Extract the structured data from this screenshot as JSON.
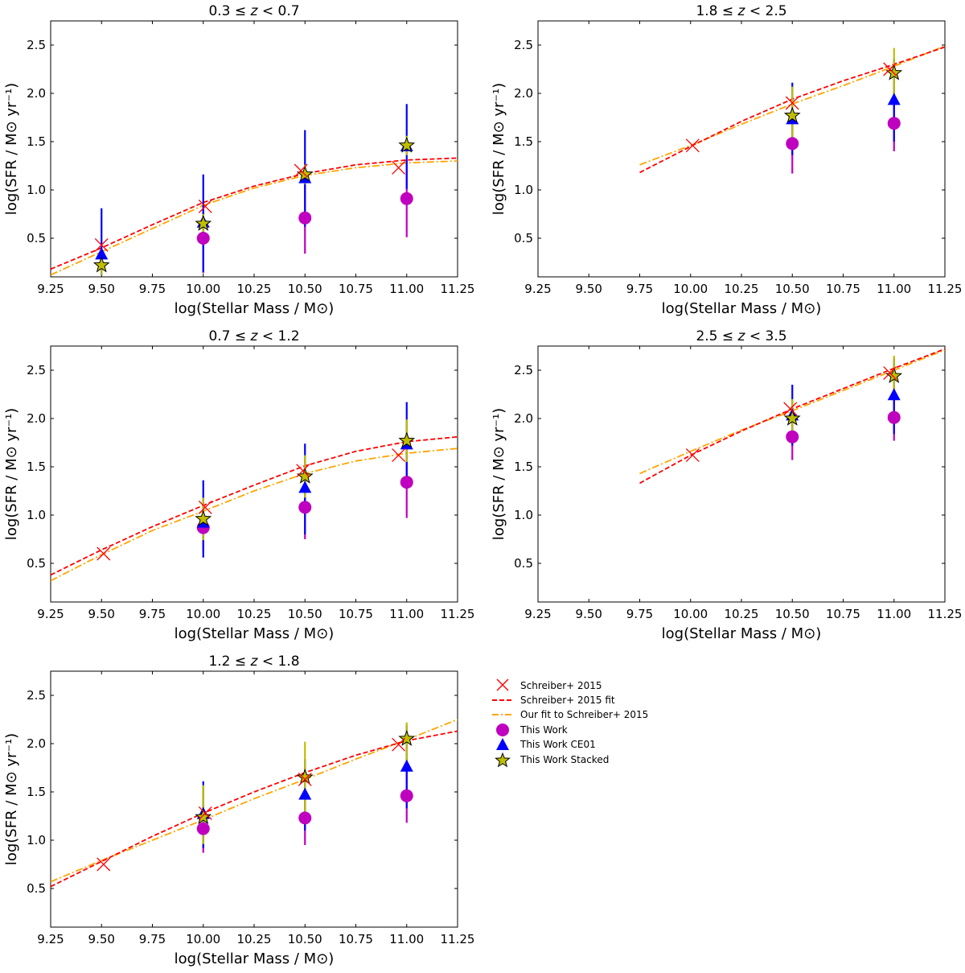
{
  "chart_data": [
    {
      "type": "scatter",
      "title": "0.3 ≤ z < 0.7",
      "title_parts": {
        "lo": "0.3",
        "var": "z",
        "hi": "0.7"
      },
      "xlabel": "log(Stellar Mass / M⊙)",
      "ylabel": "log(SFR / M⊙ yr⁻¹)",
      "xlim": [
        9.25,
        11.25
      ],
      "ylim": [
        0.1,
        2.75
      ],
      "xticks": [
        "9.25",
        "9.50",
        "9.75",
        "10.00",
        "10.25",
        "10.50",
        "10.75",
        "11.00",
        "11.25"
      ],
      "yticks": [
        "0.5",
        "1.0",
        "1.5",
        "2.0",
        "2.5"
      ],
      "schreiber_points": [
        [
          9.5,
          0.43
        ],
        [
          10.01,
          0.83
        ],
        [
          10.48,
          1.2
        ],
        [
          10.96,
          1.23
        ]
      ],
      "schreiber_fit": {
        "x": [
          9.25,
          9.5,
          9.75,
          10.0,
          10.25,
          10.5,
          10.75,
          11.0,
          11.25
        ],
        "y": [
          0.18,
          0.4,
          0.64,
          0.87,
          1.04,
          1.17,
          1.26,
          1.31,
          1.33
        ]
      },
      "our_fit": {
        "x": [
          9.25,
          9.5,
          9.75,
          10.0,
          10.25,
          10.5,
          10.75,
          11.0,
          11.25
        ],
        "y": [
          0.12,
          0.36,
          0.6,
          0.84,
          1.02,
          1.15,
          1.23,
          1.28,
          1.3
        ]
      },
      "this_work": [
        {
          "x": 10.0,
          "y": 0.5,
          "ylo": 0.14,
          "yhi": 0.86
        },
        {
          "x": 10.5,
          "y": 0.71,
          "ylo": 0.34,
          "yhi": 1.08
        },
        {
          "x": 11.0,
          "y": 0.91,
          "ylo": 0.51,
          "yhi": 1.31
        }
      ],
      "ce01": [
        {
          "x": 9.5,
          "y": 0.33,
          "ylo": 0.12,
          "yhi": 0.81
        },
        {
          "x": 10.0,
          "y": 0.66,
          "ylo": 0.15,
          "yhi": 1.16
        },
        {
          "x": 10.5,
          "y": 1.12,
          "ylo": 0.62,
          "yhi": 1.62
        },
        {
          "x": 11.0,
          "y": 1.45,
          "ylo": 1.01,
          "yhi": 1.89
        }
      ],
      "stacked": [
        {
          "x": 9.5,
          "y": 0.22,
          "ylo": 0.12,
          "yhi": 0.32
        },
        {
          "x": 10.0,
          "y": 0.65,
          "ylo": 0.55,
          "yhi": 0.75
        },
        {
          "x": 10.5,
          "y": 1.16,
          "ylo": 1.06,
          "yhi": 1.26
        },
        {
          "x": 11.0,
          "y": 1.46,
          "ylo": 1.36,
          "yhi": 1.56
        }
      ]
    },
    {
      "type": "scatter",
      "title": "1.8 ≤ z < 2.5",
      "title_parts": {
        "lo": "1.8",
        "var": "z",
        "hi": "2.5"
      },
      "xlabel": "log(Stellar Mass / M⊙)",
      "ylabel": "log(SFR / M⊙ yr⁻¹)",
      "xlim": [
        9.25,
        11.25
      ],
      "ylim": [
        0.1,
        2.75
      ],
      "xticks": [
        "9.25",
        "9.50",
        "9.75",
        "10.00",
        "10.25",
        "10.50",
        "10.75",
        "11.00",
        "11.25"
      ],
      "yticks": [
        "0.5",
        "1.0",
        "1.5",
        "2.0",
        "2.5"
      ],
      "schreiber_points": [
        [
          10.01,
          1.46
        ],
        [
          10.5,
          1.9
        ],
        [
          10.98,
          2.25
        ]
      ],
      "schreiber_fit": {
        "x": [
          9.75,
          10.0,
          10.25,
          10.5,
          10.75,
          11.0,
          11.25
        ],
        "y": [
          1.18,
          1.45,
          1.71,
          1.94,
          2.13,
          2.3,
          2.48
        ]
      },
      "our_fit": {
        "x": [
          9.75,
          10.0,
          10.25,
          10.5,
          10.75,
          11.0,
          11.25
        ],
        "y": [
          1.26,
          1.46,
          1.68,
          1.89,
          2.08,
          2.28,
          2.49
        ]
      },
      "this_work": [
        {
          "x": 10.5,
          "y": 1.48,
          "ylo": 1.17,
          "yhi": 1.79
        },
        {
          "x": 11.0,
          "y": 1.69,
          "ylo": 1.4,
          "yhi": 1.98
        }
      ],
      "ce01": [
        {
          "x": 10.5,
          "y": 1.73,
          "ylo": 1.36,
          "yhi": 2.11
        },
        {
          "x": 11.0,
          "y": 1.93,
          "ylo": 1.5,
          "yhi": 2.36
        }
      ],
      "stacked": [
        {
          "x": 10.5,
          "y": 1.77,
          "ylo": 1.47,
          "yhi": 2.07
        },
        {
          "x": 11.0,
          "y": 2.21,
          "ylo": 1.95,
          "yhi": 2.47
        }
      ]
    },
    {
      "type": "scatter",
      "title": "0.7 ≤ z < 1.2",
      "title_parts": {
        "lo": "0.7",
        "var": "z",
        "hi": "1.2"
      },
      "xlabel": "log(Stellar Mass / M⊙)",
      "ylabel": "log(SFR / M⊙ yr⁻¹)",
      "xlim": [
        9.25,
        11.25
      ],
      "ylim": [
        0.1,
        2.75
      ],
      "xticks": [
        "9.25",
        "9.50",
        "9.75",
        "10.00",
        "10.25",
        "10.50",
        "10.75",
        "11.00",
        "11.25"
      ],
      "yticks": [
        "0.5",
        "1.0",
        "1.5",
        "2.0",
        "2.5"
      ],
      "schreiber_points": [
        [
          9.51,
          0.6
        ],
        [
          10.01,
          1.08
        ],
        [
          10.49,
          1.46
        ],
        [
          10.96,
          1.62
        ]
      ],
      "schreiber_fit": {
        "x": [
          9.25,
          9.5,
          9.75,
          10.0,
          10.25,
          10.5,
          10.75,
          11.0,
          11.25
        ],
        "y": [
          0.38,
          0.64,
          0.88,
          1.1,
          1.31,
          1.51,
          1.66,
          1.76,
          1.81
        ]
      },
      "our_fit": {
        "x": [
          9.25,
          9.5,
          9.75,
          10.0,
          10.25,
          10.5,
          10.75,
          11.0,
          11.25
        ],
        "y": [
          0.32,
          0.59,
          0.84,
          1.04,
          1.25,
          1.43,
          1.56,
          1.64,
          1.69
        ]
      },
      "this_work": [
        {
          "x": 10.0,
          "y": 0.87,
          "ylo": 0.63,
          "yhi": 1.12
        },
        {
          "x": 10.5,
          "y": 1.08,
          "ylo": 0.75,
          "yhi": 1.4
        },
        {
          "x": 11.0,
          "y": 1.34,
          "ylo": 0.97,
          "yhi": 1.69
        }
      ],
      "ce01": [
        {
          "x": 10.0,
          "y": 0.92,
          "ylo": 0.56,
          "yhi": 1.36
        },
        {
          "x": 10.5,
          "y": 1.28,
          "ylo": 0.8,
          "yhi": 1.74
        },
        {
          "x": 11.0,
          "y": 1.73,
          "ylo": 1.28,
          "yhi": 2.17
        }
      ],
      "stacked": [
        {
          "x": 10.0,
          "y": 0.96,
          "ylo": 0.74,
          "yhi": 1.18
        },
        {
          "x": 10.5,
          "y": 1.4,
          "ylo": 1.18,
          "yhi": 1.62
        },
        {
          "x": 11.0,
          "y": 1.77,
          "ylo": 1.55,
          "yhi": 1.99
        }
      ]
    },
    {
      "type": "scatter",
      "title": "2.5 ≤ z < 3.5",
      "title_parts": {
        "lo": "2.5",
        "var": "z",
        "hi": "3.5"
      },
      "xlabel": "log(Stellar Mass / M⊙)",
      "ylabel": "log(SFR / M⊙ yr⁻¹)",
      "xlim": [
        9.25,
        11.25
      ],
      "ylim": [
        0.1,
        2.75
      ],
      "xticks": [
        "9.25",
        "9.50",
        "9.75",
        "10.00",
        "10.25",
        "10.50",
        "10.75",
        "11.00",
        "11.25"
      ],
      "yticks": [
        "0.5",
        "1.0",
        "1.5",
        "2.0",
        "2.5"
      ],
      "schreiber_points": [
        [
          10.01,
          1.62
        ],
        [
          10.49,
          2.1
        ],
        [
          10.98,
          2.47
        ]
      ],
      "schreiber_fit": {
        "x": [
          9.75,
          10.0,
          10.25,
          10.5,
          10.75,
          11.0,
          11.25
        ],
        "y": [
          1.33,
          1.62,
          1.87,
          2.1,
          2.31,
          2.52,
          2.72
        ]
      },
      "our_fit": {
        "x": [
          9.75,
          10.0,
          10.25,
          10.5,
          10.75,
          11.0,
          11.25
        ],
        "y": [
          1.43,
          1.66,
          1.88,
          2.08,
          2.29,
          2.5,
          2.71
        ]
      },
      "this_work": [
        {
          "x": 10.5,
          "y": 1.81,
          "ylo": 1.57,
          "yhi": 2.05
        },
        {
          "x": 11.0,
          "y": 2.01,
          "ylo": 1.77,
          "yhi": 2.25
        }
      ],
      "ce01": [
        {
          "x": 10.5,
          "y": 2.03,
          "ylo": 1.72,
          "yhi": 2.35
        },
        {
          "x": 11.0,
          "y": 2.24,
          "ylo": 1.84,
          "yhi": 2.62
        }
      ],
      "stacked": [
        {
          "x": 10.5,
          "y": 2.0,
          "ylo": 1.8,
          "yhi": 2.2
        },
        {
          "x": 11.0,
          "y": 2.44,
          "ylo": 2.23,
          "yhi": 2.65
        }
      ]
    },
    {
      "type": "scatter",
      "title": "1.2 ≤ z < 1.8",
      "title_parts": {
        "lo": "1.2",
        "var": "z",
        "hi": "1.8"
      },
      "xlabel": "log(Stellar Mass / M⊙)",
      "ylabel": "log(SFR / M⊙ yr⁻¹)",
      "xlim": [
        9.25,
        11.25
      ],
      "ylim": [
        0.1,
        2.75
      ],
      "xticks": [
        "9.25",
        "9.50",
        "9.75",
        "10.00",
        "10.25",
        "10.50",
        "10.75",
        "11.00",
        "11.25"
      ],
      "yticks": [
        "0.5",
        "1.0",
        "1.5",
        "2.0",
        "2.5"
      ],
      "schreiber_points": [
        [
          9.51,
          0.75
        ],
        [
          10.01,
          1.28
        ],
        [
          10.5,
          1.63
        ],
        [
          10.96,
          1.99
        ]
      ],
      "schreiber_fit": {
        "x": [
          9.25,
          9.5,
          9.75,
          10.0,
          10.25,
          10.5,
          10.75,
          11.0,
          11.25
        ],
        "y": [
          0.52,
          0.78,
          1.04,
          1.28,
          1.5,
          1.7,
          1.88,
          2.03,
          2.13
        ]
      },
      "our_fit": {
        "x": [
          9.25,
          9.5,
          9.75,
          10.0,
          10.25,
          10.5,
          10.75,
          11.0,
          11.25
        ],
        "y": [
          0.57,
          0.79,
          1.0,
          1.21,
          1.43,
          1.63,
          1.84,
          2.04,
          2.25
        ]
      },
      "this_work": [
        {
          "x": 10.0,
          "y": 1.12,
          "ylo": 0.87,
          "yhi": 1.37
        },
        {
          "x": 10.5,
          "y": 1.23,
          "ylo": 0.95,
          "yhi": 1.52
        },
        {
          "x": 11.0,
          "y": 1.46,
          "ylo": 1.18,
          "yhi": 1.74
        }
      ],
      "ce01": [
        {
          "x": 10.0,
          "y": 1.27,
          "ylo": 0.92,
          "yhi": 1.61
        },
        {
          "x": 10.5,
          "y": 1.47,
          "ylo": 1.1,
          "yhi": 1.84
        },
        {
          "x": 11.0,
          "y": 1.76,
          "ylo": 1.33,
          "yhi": 2.19
        }
      ],
      "stacked": [
        {
          "x": 10.0,
          "y": 1.24,
          "ylo": 0.96,
          "yhi": 1.57
        },
        {
          "x": 10.5,
          "y": 1.65,
          "ylo": 1.29,
          "yhi": 2.02
        },
        {
          "x": 11.0,
          "y": 2.05,
          "ylo": 1.8,
          "yhi": 2.22
        }
      ]
    }
  ],
  "legend": {
    "schreiber": "Schreiber+ 2015",
    "schreiber_fit": "Schreiber+ 2015 fit",
    "our_fit": "Our fit to Schreiber+ 2015",
    "this_work": "This Work",
    "ce01": "This Work CE01",
    "stacked": "This Work Stacked"
  },
  "colors": {
    "schreiber": "#ff0000",
    "schreiber_fit": "#ff0000",
    "our_fit": "#ffa500",
    "this_work": "#bf00bf",
    "ce01": "#0000ff",
    "stacked": "#bfbf00",
    "stacked_err": "#bfbf00"
  }
}
